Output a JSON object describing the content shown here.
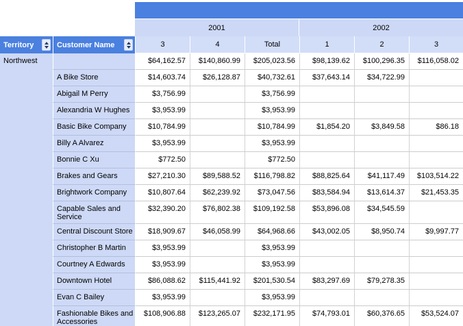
{
  "report": {
    "type": "matrix-report",
    "colors": {
      "header_blue": "#4a80df",
      "group_row_bg": "#ccd8f5",
      "column_header_bg": "#d2ddf8",
      "row_header_bg": "#cdd9f6",
      "gridline": "#cccccc",
      "text": "#000000",
      "header_text": "#ffffff"
    },
    "icons": {
      "sort": "sort-updown-icon",
      "sort_asc_glyph": "▲",
      "sort_desc_glyph": "▼"
    }
  },
  "header": {
    "year_groups": [
      {
        "label": "2001",
        "columns": 3
      },
      {
        "label": "2002",
        "columns": 3
      }
    ],
    "column_headers": [
      "3",
      "4",
      "Total",
      "1",
      "2",
      "3"
    ],
    "row_headers": [
      {
        "label": "Territory"
      },
      {
        "label": "Customer Name"
      }
    ]
  },
  "table": {
    "territory": "Northwest",
    "rows": [
      {
        "customer": "",
        "values": [
          "$64,162.57",
          "$140,860.99",
          "$205,023.56",
          "$98,139.62",
          "$100,296.35",
          "$116,058.02"
        ]
      },
      {
        "customer": "A Bike Store",
        "values": [
          "$14,603.74",
          "$26,128.87",
          "$40,732.61",
          "$37,643.14",
          "$34,722.99",
          ""
        ]
      },
      {
        "customer": "Abigail M Perry",
        "values": [
          "$3,756.99",
          "",
          "$3,756.99",
          "",
          "",
          ""
        ]
      },
      {
        "customer": "Alexandria W Hughes",
        "values": [
          "$3,953.99",
          "",
          "$3,953.99",
          "",
          "",
          ""
        ]
      },
      {
        "customer": "Basic Bike Company",
        "values": [
          "$10,784.99",
          "",
          "$10,784.99",
          "$1,854.20",
          "$3,849.58",
          "$86.18"
        ]
      },
      {
        "customer": "Billy A Alvarez",
        "values": [
          "$3,953.99",
          "",
          "$3,953.99",
          "",
          "",
          ""
        ]
      },
      {
        "customer": "Bonnie C Xu",
        "values": [
          "$772.50",
          "",
          "$772.50",
          "",
          "",
          ""
        ]
      },
      {
        "customer": "Brakes and Gears",
        "values": [
          "$27,210.30",
          "$89,588.52",
          "$116,798.82",
          "$88,825.64",
          "$41,117.49",
          "$103,514.22"
        ]
      },
      {
        "customer": "Brightwork Company",
        "values": [
          "$10,807.64",
          "$62,239.92",
          "$73,047.56",
          "$83,584.94",
          "$13,614.37",
          "$21,453.35"
        ]
      },
      {
        "customer": "Capable Sales and Service",
        "values": [
          "$32,390.20",
          "$76,802.38",
          "$109,192.58",
          "$53,896.08",
          "$34,545.59",
          ""
        ]
      },
      {
        "customer": "Central Discount Store",
        "values": [
          "$18,909.67",
          "$46,058.99",
          "$64,968.66",
          "$43,002.05",
          "$8,950.74",
          "$9,997.77"
        ]
      },
      {
        "customer": "Christopher B Martin",
        "values": [
          "$3,953.99",
          "",
          "$3,953.99",
          "",
          "",
          ""
        ]
      },
      {
        "customer": "Courtney A Edwards",
        "values": [
          "$3,953.99",
          "",
          "$3,953.99",
          "",
          "",
          ""
        ]
      },
      {
        "customer": "Downtown Hotel",
        "values": [
          "$86,088.62",
          "$115,441.92",
          "$201,530.54",
          "$83,297.69",
          "$79,278.35",
          ""
        ]
      },
      {
        "customer": "Evan C Bailey",
        "values": [
          "$3,953.99",
          "",
          "$3,953.99",
          "",
          "",
          ""
        ]
      },
      {
        "customer": "Fashionable Bikes and Accessories",
        "values": [
          "$108,906.88",
          "$123,265.07",
          "$232,171.95",
          "$74,793.01",
          "$60,376.65",
          "$53,524.07"
        ]
      }
    ]
  }
}
